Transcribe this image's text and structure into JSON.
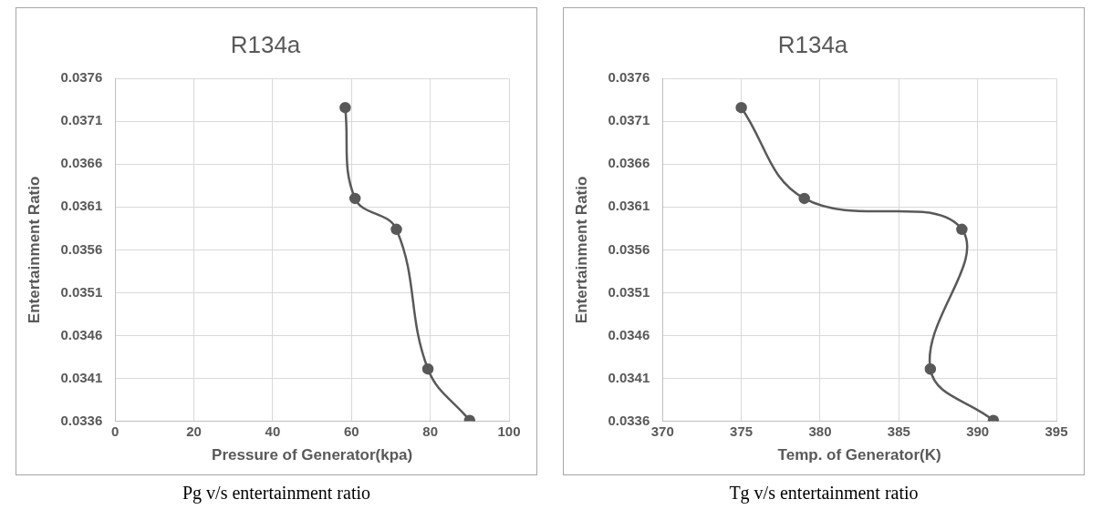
{
  "chart_data": [
    {
      "type": "line",
      "title": "R134a",
      "xlabel": "Pressure of Generator(kpa)",
      "ylabel": "Entertainment Ratio",
      "x": [
        58.4,
        60.9,
        71.4,
        79.4,
        90
      ],
      "values": [
        0.03726,
        0.0362,
        0.03584,
        0.03421,
        0.03361
      ],
      "color": "#595959",
      "xlim": [
        0,
        100
      ],
      "xticks": [
        0,
        20,
        40,
        60,
        80,
        100
      ],
      "ylim": [
        0.0336,
        0.0376
      ],
      "yticks": [
        {
          "value": 0.0336,
          "label": "0.0336"
        },
        {
          "value": 0.0341,
          "label": "0.0341"
        },
        {
          "value": 0.0346,
          "label": "0.0346"
        },
        {
          "value": 0.0351,
          "label": "0.0351"
        },
        {
          "value": 0.0356,
          "label": "0.0356"
        },
        {
          "value": 0.0361,
          "label": "0.0361"
        },
        {
          "value": 0.0366,
          "label": "0.0366"
        },
        {
          "value": 0.0371,
          "label": "0.0371"
        },
        {
          "value": 0.0376,
          "label": "0.0376"
        }
      ],
      "grid": true,
      "marker": "circle",
      "line_style": "solid",
      "legend": false,
      "annotations": [
        "Pg v/s entertainment ratio"
      ]
    },
    {
      "type": "line",
      "title": "R134a",
      "xlabel": "Temp. of Generator(K)",
      "ylabel": "Entertainment Ratio",
      "x": [
        375,
        379,
        389,
        387,
        391
      ],
      "values": [
        0.03726,
        0.0362,
        0.03584,
        0.03421,
        0.03361
      ],
      "color": "#595959",
      "xlim": [
        370,
        395
      ],
      "xticks": [
        370,
        375,
        380,
        385,
        390,
        395
      ],
      "ylim": [
        0.0336,
        0.0376
      ],
      "yticks": [
        {
          "value": 0.0336,
          "label": "0.0336"
        },
        {
          "value": 0.0341,
          "label": "0.0341"
        },
        {
          "value": 0.0346,
          "label": "0.0346"
        },
        {
          "value": 0.0351,
          "label": "0.0351"
        },
        {
          "value": 0.0356,
          "label": "0.0356"
        },
        {
          "value": 0.0361,
          "label": "0.0361"
        },
        {
          "value": 0.0366,
          "label": "0.0366"
        },
        {
          "value": 0.0371,
          "label": "0.0371"
        },
        {
          "value": 0.0376,
          "label": "0.0376"
        }
      ],
      "grid": true,
      "marker": "circle",
      "line_style": "solid",
      "legend": false,
      "annotations": [
        "Tg v/s entertainment ratio"
      ]
    }
  ]
}
